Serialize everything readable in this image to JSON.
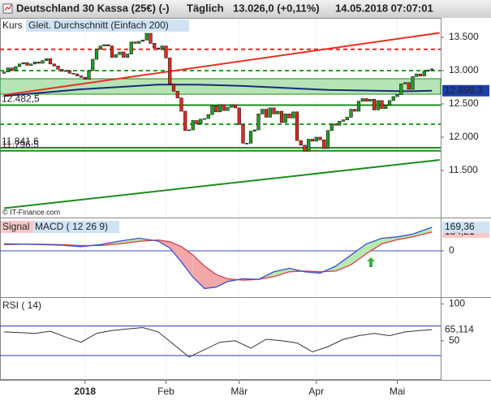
{
  "chart_data": [
    {
      "type": "candlestick",
      "title": "Deutschland 30 Kassa (25€) (-)",
      "interval": "Täglich",
      "last": "13.026,0 (+0,11%)",
      "timestamp": "14.05.2018 07:07:01",
      "legend_label": "Kurs",
      "credit": "© IT-Finance.com",
      "categories": [
        null,
        null,
        null,
        null,
        null,
        null,
        null,
        null,
        null,
        null,
        null,
        null,
        null,
        null,
        null,
        null,
        null,
        null,
        null,
        null,
        null,
        "2018",
        null,
        null,
        null,
        null,
        null,
        null,
        null,
        null,
        null,
        null,
        null,
        null,
        null,
        null,
        null,
        null,
        null,
        null,
        null,
        null,
        "Feb",
        null,
        null,
        null,
        null,
        null,
        null,
        null,
        null,
        null,
        null,
        null,
        null,
        null,
        null,
        null,
        null,
        null,
        null,
        "Mär",
        null,
        null,
        null,
        null,
        null,
        null,
        null,
        null,
        null,
        null,
        null,
        null,
        null,
        null,
        null,
        null,
        null,
        null,
        null,
        "Apr",
        null,
        null,
        null,
        null,
        null,
        null,
        null,
        null,
        null,
        null,
        null,
        null,
        null,
        null,
        null,
        null,
        null,
        null,
        null,
        null,
        "Mai",
        null,
        null,
        null,
        null,
        null,
        null,
        null,
        null,
        null
      ],
      "open": [
        12960,
        12980,
        13040,
        13000,
        13060,
        13100,
        13120,
        13080,
        13100,
        13130,
        13110,
        13150,
        13180,
        13100,
        13070,
        13020,
        12990,
        13000,
        12960,
        12950,
        12920,
        12900,
        12870,
        13000,
        13170,
        13320,
        13370,
        13390,
        13370,
        13200,
        13240,
        13280,
        13200,
        13250,
        13430,
        13410,
        13440,
        13460,
        13560,
        13410,
        13340,
        13320,
        13370,
        13190,
        12800,
        12690,
        12590,
        12390,
        12100,
        12110,
        12250,
        12200,
        12270,
        12280,
        12340,
        12470,
        12380,
        12490,
        12400,
        12450,
        12490,
        12440,
        12190,
        11910,
        11910,
        12090,
        12110,
        12350,
        12420,
        12300,
        12440,
        12350,
        12390,
        12220,
        12350,
        12290,
        12380,
        11950,
        11880,
        11790,
        11970,
        11940,
        12000,
        11960,
        11830,
        12100,
        12200,
        12180,
        12240,
        12260,
        12300,
        12420,
        12390,
        12540,
        12580,
        12540,
        12570,
        12410,
        12550,
        12430,
        12480,
        12550,
        12610,
        12640,
        12800,
        12820,
        12720,
        12910,
        12950,
        12920,
        12990,
        13010
      ],
      "close": [
        12980,
        13040,
        13000,
        13060,
        13100,
        13120,
        13080,
        13100,
        13130,
        13110,
        13150,
        13180,
        13100,
        13070,
        13020,
        12990,
        13000,
        12960,
        12950,
        12920,
        12900,
        12870,
        13000,
        13170,
        13320,
        13370,
        13390,
        13370,
        13200,
        13240,
        13280,
        13200,
        13250,
        13430,
        13410,
        13440,
        13460,
        13560,
        13410,
        13340,
        13320,
        13370,
        13190,
        12800,
        12690,
        12590,
        12390,
        12100,
        12110,
        12250,
        12200,
        12270,
        12280,
        12340,
        12470,
        12380,
        12490,
        12400,
        12450,
        12490,
        12440,
        12190,
        11910,
        11910,
        12090,
        12110,
        12350,
        12420,
        12300,
        12440,
        12350,
        12390,
        12220,
        12350,
        12290,
        12380,
        11950,
        11880,
        11790,
        11970,
        11940,
        12000,
        11960,
        11830,
        12100,
        12200,
        12180,
        12240,
        12260,
        12300,
        12420,
        12390,
        12540,
        12580,
        12540,
        12570,
        12410,
        12550,
        12430,
        12480,
        12550,
        12610,
        12640,
        12800,
        12820,
        12720,
        12910,
        12950,
        12920,
        12990,
        13010,
        13026
      ],
      "up_color": "#22a022",
      "down_color": "#e02a1e",
      "moving_average": {
        "name": "Gleit. Durchschnitt (Einfach 200)",
        "color": "#1c2a78",
        "x": [
          0,
          20,
          40,
          50,
          62,
          84,
          104,
          111
        ],
        "values": [
          12620,
          12720,
          12790,
          12790,
          12770,
          12710,
          12690,
          12698.3
        ],
        "value_labels": [
          null,
          null,
          null,
          null,
          null,
          null,
          null,
          "12.698,3"
        ]
      },
      "zones": [
        {
          "from": 12646,
          "to": 12878,
          "color": "#a9dfa9"
        }
      ],
      "levels": [
        {
          "value": 13320,
          "color": "#e02a1e",
          "dash": true
        },
        {
          "value": 13000,
          "color": "#22a022",
          "dash": true
        },
        {
          "value": 12482.5,
          "label": "12.482,5",
          "color": "#1e8c1e",
          "dash": false
        },
        {
          "value": 12195,
          "color": "#22a022",
          "dash": true
        },
        {
          "value": 11841.6,
          "label": "11.841,6",
          "color": "#1e8c1e",
          "dash": false
        },
        {
          "value": 11796.5,
          "label": "11.796,5",
          "color": "#1e8c1e",
          "dash": false
        }
      ],
      "trend_lines": [
        {
          "color": "#e83020",
          "x": [
            0,
            113
          ],
          "values": [
            12634,
            13567
          ]
        },
        {
          "color": "#1e8c1e",
          "x": [
            0,
            113
          ],
          "values": [
            10933,
            11659
          ]
        }
      ],
      "ylim": [
        10793,
        13756
      ],
      "yticks": [
        {
          "value": 13500,
          "label": "13.500"
        },
        {
          "value": 13000,
          "label": "13.000"
        },
        {
          "value": 12500,
          "label": "12.500"
        },
        {
          "value": 12000,
          "label": "12.000"
        },
        {
          "value": 11500,
          "label": "11.500"
        }
      ]
    },
    {
      "type": "macd",
      "x": [
        0,
        5,
        10,
        15,
        20,
        25,
        30,
        35,
        40,
        43,
        46,
        49,
        52,
        55,
        58,
        62,
        66,
        70,
        74,
        78,
        82,
        86,
        90,
        94,
        98,
        102,
        106,
        111
      ],
      "series": [
        {
          "name": "Signal",
          "color": "#d84040",
          "values": [
            45,
            48,
            47,
            44,
            38,
            38,
            50,
            68,
            78,
            65,
            30,
            -30,
            -110,
            -170,
            -200,
            -210,
            -205,
            -185,
            -150,
            -145,
            -150,
            -145,
            -100,
            -20,
            50,
            80,
            100,
            134.21
          ],
          "value_labels": [
            null,
            null,
            null,
            null,
            null,
            null,
            null,
            null,
            null,
            null,
            null,
            null,
            null,
            null,
            null,
            null,
            null,
            null,
            null,
            null,
            null,
            null,
            null,
            null,
            null,
            null,
            null,
            "134,21"
          ]
        },
        {
          "name": "MACD ( 12 26 9)",
          "color": "#3a4fd0",
          "values": [
            50,
            48,
            45,
            40,
            30,
            45,
            70,
            90,
            70,
            20,
            -80,
            -190,
            -270,
            -260,
            -220,
            -200,
            -205,
            -150,
            -125,
            -150,
            -160,
            -110,
            -30,
            50,
            90,
            100,
            120,
            169.36
          ],
          "value_labels": [
            null,
            null,
            null,
            null,
            null,
            null,
            null,
            null,
            null,
            null,
            null,
            null,
            null,
            null,
            null,
            null,
            null,
            null,
            null,
            null,
            null,
            null,
            null,
            null,
            null,
            null,
            null,
            "169,36"
          ]
        }
      ],
      "ylim": [
        -326,
        227
      ],
      "yticks": [
        0
      ]
    },
    {
      "type": "rsi",
      "x": [
        0,
        4,
        8,
        12,
        16,
        20,
        24,
        28,
        32,
        36,
        40,
        44,
        48,
        52,
        56,
        60,
        64,
        68,
        72,
        76,
        80,
        84,
        88,
        92,
        96,
        100,
        104,
        108,
        111
      ],
      "series": [
        {
          "name": "RSI ( 14)",
          "color": "#333333",
          "values": [
            62,
            61,
            60,
            63,
            55,
            48,
            60,
            64,
            66,
            68,
            62,
            45,
            28,
            38,
            48,
            50,
            40,
            52,
            50,
            47,
            35,
            42,
            52,
            57,
            60,
            57,
            62,
            64,
            65.114
          ],
          "value_labels": [
            null,
            null,
            null,
            null,
            null,
            null,
            null,
            null,
            null,
            null,
            null,
            null,
            null,
            null,
            null,
            null,
            null,
            null,
            null,
            null,
            null,
            null,
            null,
            null,
            null,
            null,
            null,
            null,
            "65,114"
          ]
        }
      ],
      "bands": [
        70,
        30
      ],
      "band_color": "#2a3ab0",
      "ylim": [
        -3,
        107
      ],
      "yticks": [
        50,
        100
      ]
    }
  ]
}
